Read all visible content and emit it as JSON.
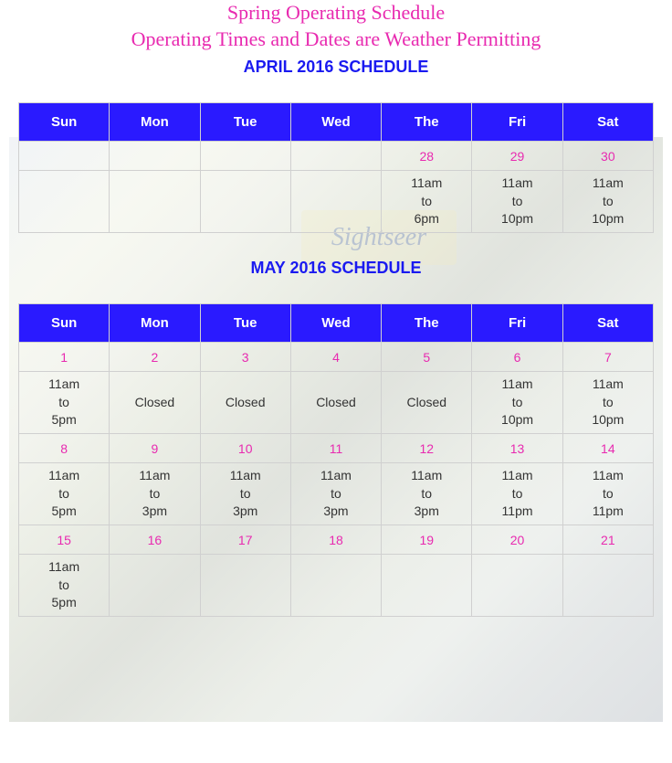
{
  "header": {
    "line1": "Spring Operating Schedule",
    "line2": "Operating Times and Dates are Weather Permitting"
  },
  "sign_text": "Sightseer",
  "colors": {
    "script_pink": "#e82ab0",
    "header_blue": "#1a1af0",
    "th_bg": "#2a1aff",
    "th_text": "#ffffff",
    "cell_date": "#e82ab0",
    "cell_time": "#333333",
    "border": "#d0d0d0"
  },
  "day_headers": [
    "Sun",
    "Mon",
    "Tue",
    "Wed",
    "The",
    "Fri",
    "Sat"
  ],
  "april": {
    "title": "APRIL 2016 SCHEDULE",
    "rows": [
      {
        "type": "date",
        "cells": [
          "",
          "",
          "",
          "",
          "28",
          "29",
          "30"
        ]
      },
      {
        "type": "time",
        "cells": [
          "",
          "",
          "",
          "",
          "11am\nto\n6pm",
          "11am\nto\n10pm",
          "11am\nto\n10pm"
        ]
      }
    ]
  },
  "may": {
    "title": "MAY 2016 SCHEDULE",
    "rows": [
      {
        "type": "date",
        "cells": [
          "1",
          "2",
          "3",
          "4",
          "5",
          "6",
          "7"
        ]
      },
      {
        "type": "time",
        "cells": [
          "11am\nto\n5pm",
          "Closed",
          "Closed",
          "Closed",
          "Closed",
          "11am\nto\n10pm",
          "11am\nto\n10pm"
        ]
      },
      {
        "type": "date",
        "cells": [
          "8",
          "9",
          "10",
          "11",
          "12",
          "13",
          "14"
        ]
      },
      {
        "type": "time",
        "cells": [
          "11am\nto\n5pm",
          "11am\nto\n3pm",
          "11am\nto\n3pm",
          "11am\nto\n3pm",
          "11am\nto\n3pm",
          "11am\nto\n11pm",
          "11am\nto\n11pm"
        ]
      },
      {
        "type": "date",
        "cells": [
          "15",
          "16",
          "17",
          "18",
          "19",
          "20",
          "21"
        ]
      },
      {
        "type": "time",
        "cells": [
          "11am\nto\n5pm",
          "",
          "",
          "",
          "",
          "",
          ""
        ]
      }
    ]
  }
}
